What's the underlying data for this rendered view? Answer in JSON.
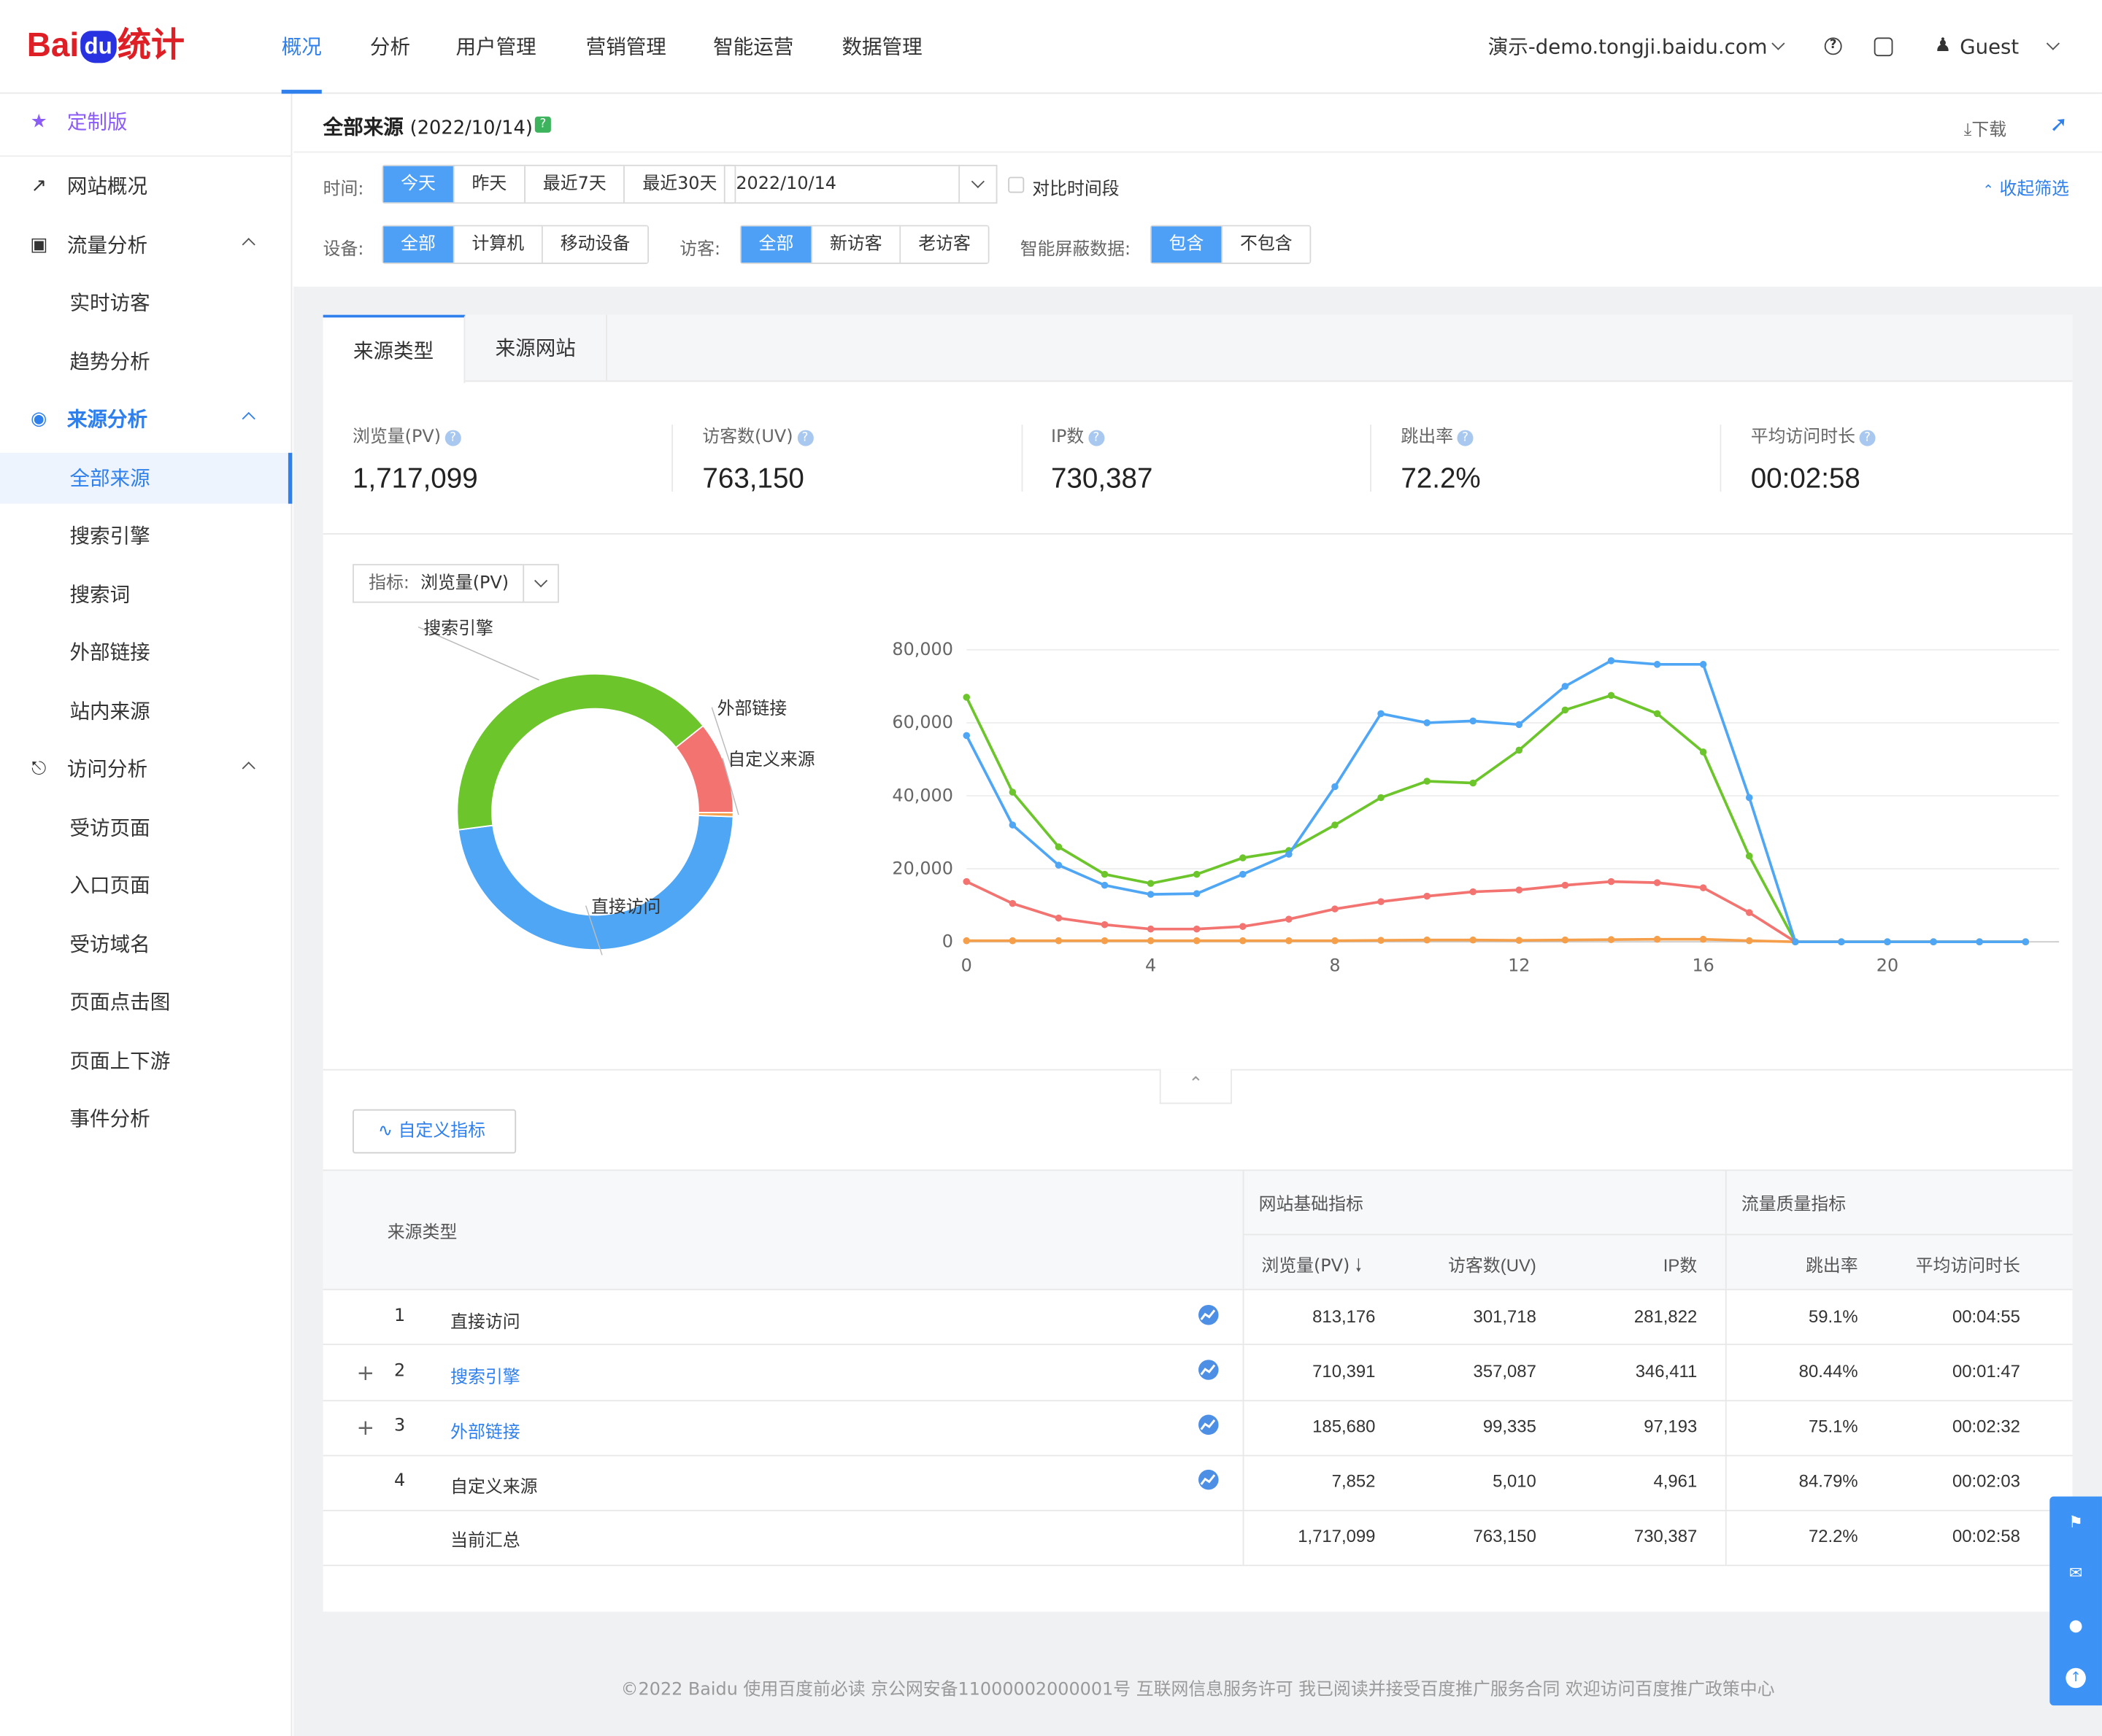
{
  "header": {
    "logo_text_1": "Bai",
    "logo_text_2": "du",
    "logo_text_3": "统计",
    "nav": [
      "概况",
      "分析",
      "用户管理",
      "营销管理",
      "智能运营",
      "数据管理"
    ],
    "site": "演示-demo.tongji.baidu.com",
    "user": "Guest"
  },
  "sidebar": {
    "custom": "定制版",
    "items": [
      "网站概况",
      "流量分析",
      "实时访客",
      "趋势分析",
      "来源分析",
      "全部来源",
      "搜索引擎",
      "搜索词",
      "外部链接",
      "站内来源",
      "访问分析",
      "受访页面",
      "入口页面",
      "受访域名",
      "页面点击图",
      "页面上下游",
      "事件分析"
    ]
  },
  "filters": {
    "title": "全部来源",
    "title_date": "(2022/10/14)",
    "download": "下载",
    "collapse": "收起筛选",
    "time_label": "时间:",
    "time_options": [
      "今天",
      "昨天",
      "最近7天",
      "最近30天"
    ],
    "date_value": "2022/10/14",
    "compare": "对比时间段",
    "device_label": "设备:",
    "device_options": [
      "全部",
      "计算机",
      "移动设备"
    ],
    "visitor_label": "访客:",
    "visitor_options": [
      "全部",
      "新访客",
      "老访客"
    ],
    "smart_label": "智能屏蔽数据:",
    "smart_options": [
      "包含",
      "不包含"
    ]
  },
  "tabs": [
    "来源类型",
    "来源网站"
  ],
  "kpis": [
    {
      "label": "浏览量(PV)",
      "value": "1,717,099"
    },
    {
      "label": "访客数(UV)",
      "value": "763,150"
    },
    {
      "label": "IP数",
      "value": "730,387"
    },
    {
      "label": "跳出率",
      "value": "72.2%"
    },
    {
      "label": "平均访问时长",
      "value": "00:02:58"
    }
  ],
  "metric_selector": {
    "label": "指标:",
    "value": "浏览量(PV)"
  },
  "custom_metric_button": "自定义指标",
  "chart_data": [
    {
      "type": "pie",
      "labels": [
        "直接访问",
        "搜索引擎",
        "外部链接",
        "自定义来源"
      ],
      "values": [
        813176,
        710391,
        185680,
        7852
      ],
      "colors": [
        "#4ea6f5",
        "#6cc52b",
        "#f37370",
        "#f59f4a"
      ]
    },
    {
      "type": "line",
      "x": [
        0,
        1,
        2,
        3,
        4,
        5,
        6,
        7,
        8,
        9,
        10,
        11,
        12,
        13,
        14,
        15,
        16,
        17,
        18,
        19,
        20,
        21,
        22,
        23
      ],
      "x_ticks": [
        "0",
        "4",
        "8",
        "12",
        "16",
        "20"
      ],
      "y_ticks": [
        "0",
        "20,000",
        "40,000",
        "60,000",
        "80,000"
      ],
      "ylim": [
        0,
        80000
      ],
      "series": [
        {
          "color": "#4ea6f5",
          "values": [
            56500,
            32000,
            21000,
            15500,
            13000,
            13200,
            18500,
            24000,
            42500,
            62500,
            60000,
            60500,
            59500,
            70000,
            77000,
            76000,
            76000,
            39500,
            0,
            0,
            0,
            0,
            0,
            0
          ]
        },
        {
          "color": "#6cc52b",
          "values": [
            67000,
            41000,
            26000,
            18500,
            16000,
            18500,
            23000,
            25000,
            32000,
            39500,
            44000,
            43500,
            52500,
            63500,
            67500,
            62500,
            52000,
            23500,
            0,
            0,
            0,
            0,
            0,
            0
          ]
        },
        {
          "color": "#f37370",
          "values": [
            16500,
            10500,
            6500,
            4700,
            3500,
            3500,
            4200,
            6200,
            9000,
            11000,
            12500,
            13700,
            14200,
            15500,
            16500,
            16200,
            14800,
            8000,
            0,
            0,
            0,
            0,
            0,
            0
          ]
        },
        {
          "color": "#f59f4a",
          "values": [
            300,
            300,
            300,
            300,
            300,
            300,
            300,
            300,
            300,
            400,
            500,
            500,
            400,
            500,
            600,
            700,
            700,
            300,
            0,
            0,
            0,
            0,
            0,
            0
          ]
        }
      ]
    }
  ],
  "table": {
    "col_source": "来源类型",
    "group_basic": "网站基础指标",
    "group_quality": "流量质量指标",
    "cols": [
      "浏览量(PV)",
      "访客数(UV)",
      "IP数",
      "跳出率",
      "平均访问时长"
    ],
    "rows": [
      {
        "idx": "1",
        "name": "直接访问",
        "pv": "813,176",
        "uv": "301,718",
        "ip": "281,822",
        "bounce": "59.1%",
        "dur": "00:04:55"
      },
      {
        "idx": "2",
        "name": "搜索引擎",
        "pv": "710,391",
        "uv": "357,087",
        "ip": "346,411",
        "bounce": "80.44%",
        "dur": "00:01:47"
      },
      {
        "idx": "3",
        "name": "外部链接",
        "pv": "185,680",
        "uv": "99,335",
        "ip": "97,193",
        "bounce": "75.1%",
        "dur": "00:02:32"
      },
      {
        "idx": "4",
        "name": "自定义来源",
        "pv": "7,852",
        "uv": "5,010",
        "ip": "4,961",
        "bounce": "84.79%",
        "dur": "00:02:03"
      }
    ],
    "total": {
      "name": "当前汇总",
      "pv": "1,717,099",
      "uv": "763,150",
      "ip": "730,387",
      "bounce": "72.2%",
      "dur": "00:02:58"
    }
  },
  "footer": "©2022 Baidu 使用百度前必读 京公网安备11000002000001号 互联网信息服务许可 我已阅读并接受百度推广服务合同 欢迎访问百度推广政策中心"
}
